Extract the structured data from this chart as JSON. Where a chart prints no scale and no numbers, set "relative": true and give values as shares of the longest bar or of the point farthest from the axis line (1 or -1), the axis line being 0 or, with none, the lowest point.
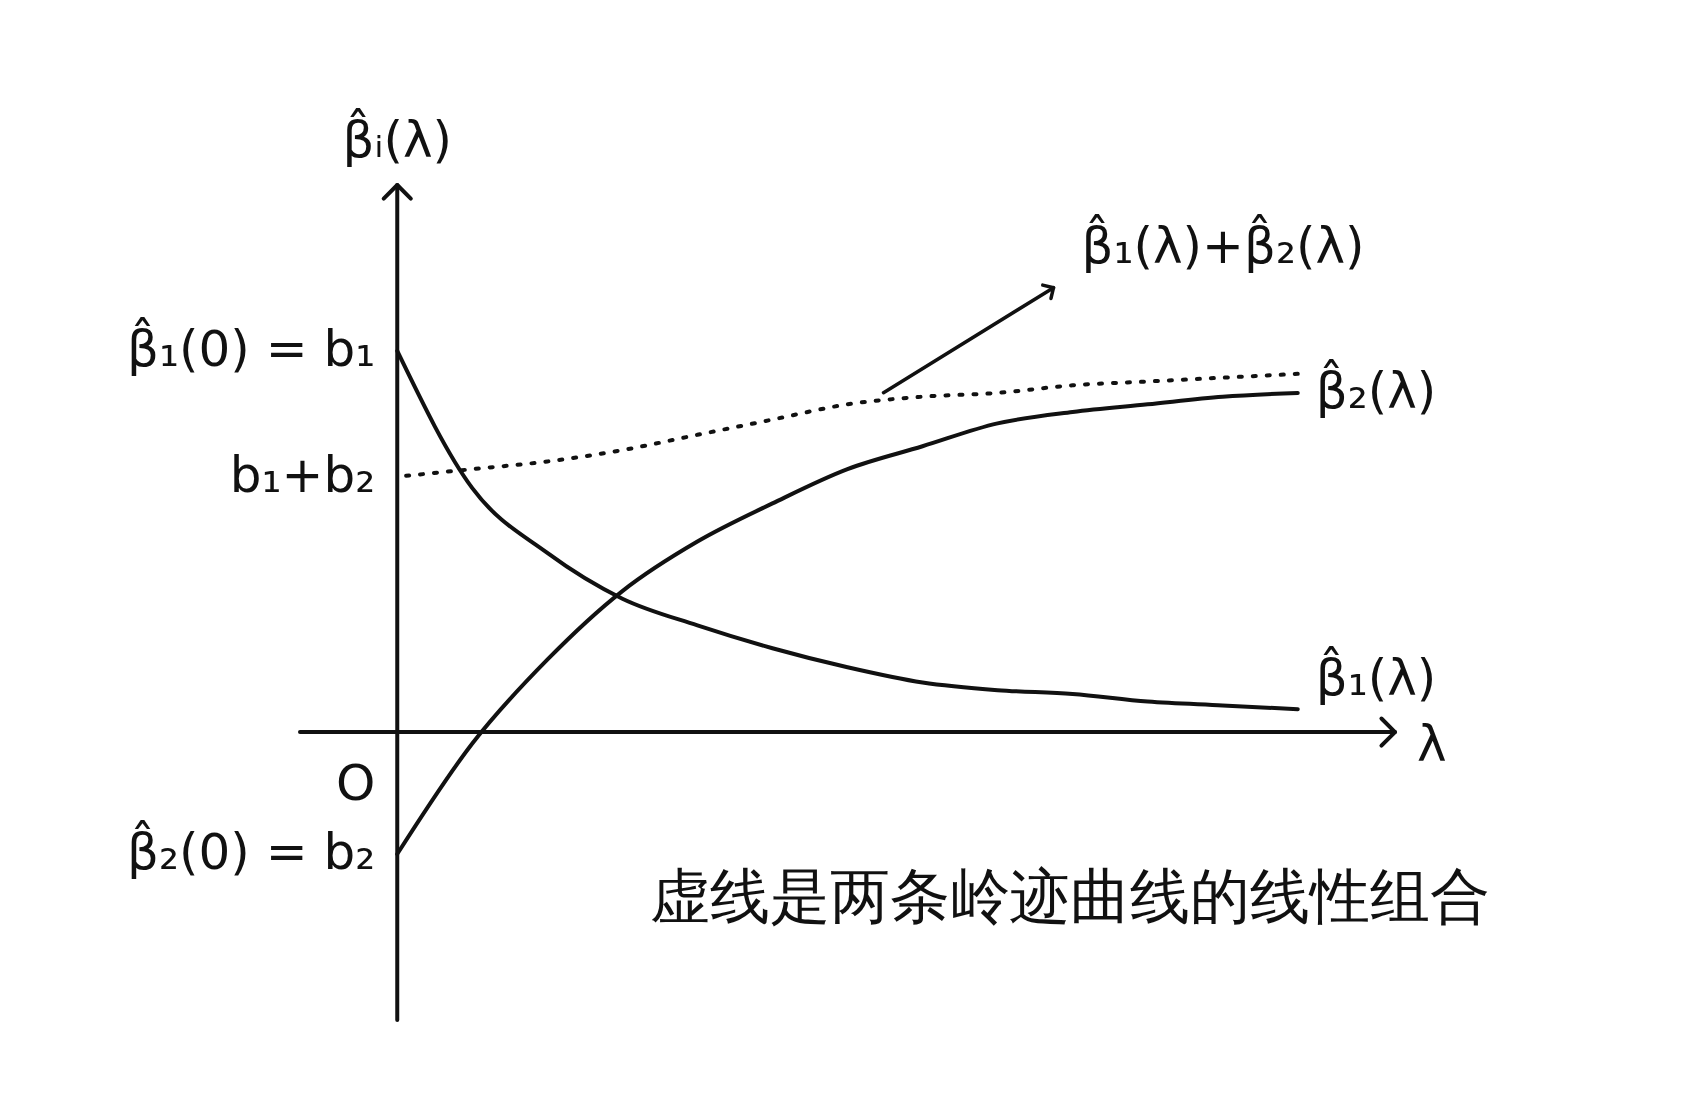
{
  "chart_data": {
    "type": "line",
    "relative": true,
    "xlabel": "λ",
    "ylabel": "β̂ᵢ(λ)",
    "categories": [
      null,
      null,
      null,
      null,
      null,
      null,
      null,
      null,
      null,
      null,
      null,
      null,
      null
    ],
    "series": [
      {
        "name": "β̂₁(λ)",
        "color": "#111111",
        "line_style": "solid",
        "values": [
          1,
          0.64,
          0.47,
          0.35,
          0.28,
          0.22,
          0.17,
          0.13,
          0.11,
          0.1,
          0.08,
          0.07,
          0.06
        ]
      },
      {
        "name": "β̂₂(λ)",
        "color": "#111111",
        "line_style": "solid",
        "values": [
          -0.32,
          -0.03,
          0.19,
          0.37,
          0.5,
          0.6,
          0.69,
          0.75,
          0.81,
          0.84,
          0.86,
          0.88,
          0.89
        ]
      },
      {
        "name": "β̂₁(λ)+β̂₂(λ)",
        "color": "#111111",
        "line_style": "dotted",
        "values": [
          0.67,
          0.69,
          0.71,
          0.74,
          0.78,
          0.82,
          0.86,
          0.88,
          0.89,
          0.91,
          0.92,
          0.93,
          0.94
        ]
      }
    ],
    "annotations": [
      "β̂₁(0) = b₁",
      "b₁+b₂",
      "O",
      "β̂₂(0) = b₂",
      "虚线是两条岭迹曲线的线性组合"
    ]
  }
}
